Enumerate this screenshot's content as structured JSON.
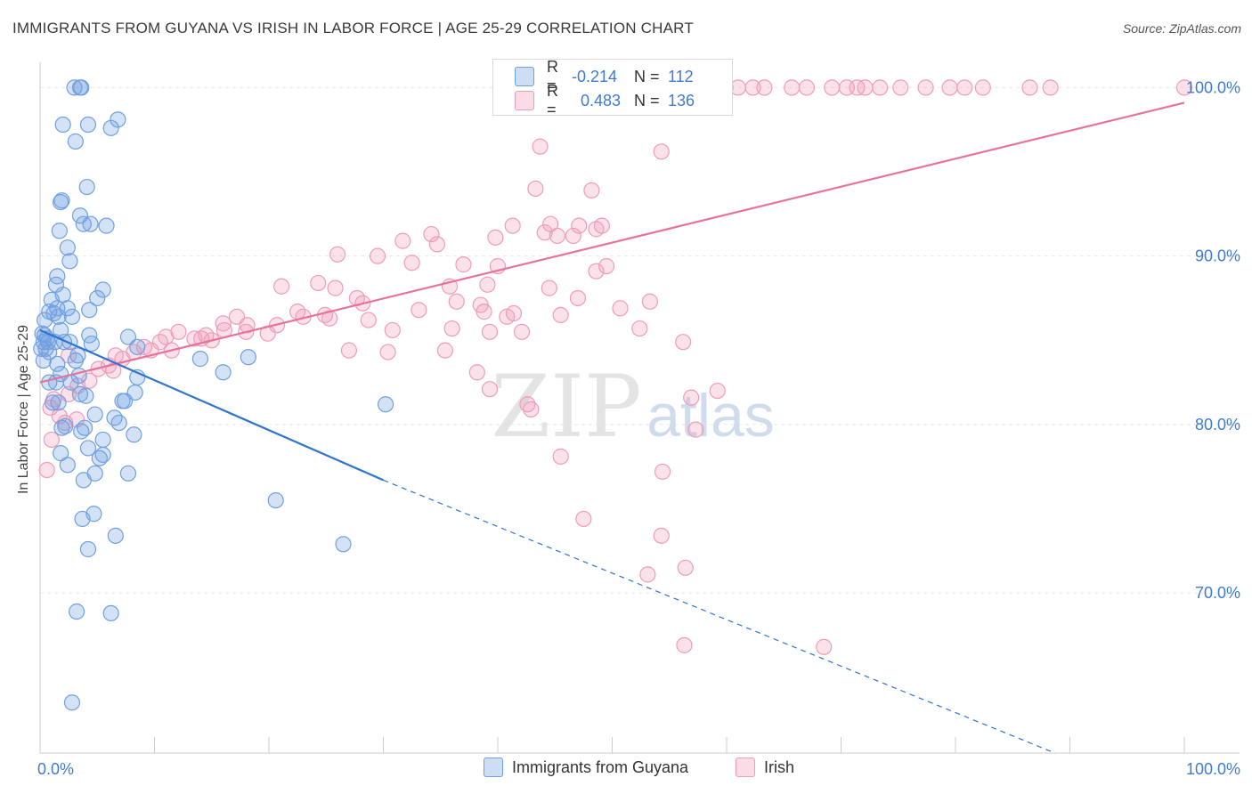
{
  "title": "IMMIGRANTS FROM GUYANA VS IRISH IN LABOR FORCE | AGE 25-29 CORRELATION CHART",
  "source": "Source: ZipAtlas.com",
  "watermark": {
    "zip": "ZIP",
    "atlas": "atlas"
  },
  "legend": {
    "r_label": "R =",
    "n_label": "N =",
    "series": [
      {
        "name": "Immigrants from Guyana",
        "r": "-0.214",
        "n": "112",
        "color": "#6fa0e0"
      },
      {
        "name": "Irish",
        "r": "0.483",
        "n": "136",
        "color": "#f09cb8"
      }
    ]
  },
  "chart_data": {
    "type": "scatter",
    "title": "IMMIGRANTS FROM GUYANA VS IRISH IN LABOR FORCE | AGE 25-29 CORRELATION CHART",
    "xlabel": "",
    "ylabel": "In Labor Force | Age 25-29",
    "xlim": [
      0,
      100
    ],
    "ylim": [
      60.5,
      101.5
    ],
    "x_tick_labels": [
      "0.0%",
      "100.0%"
    ],
    "y_ticks": [
      70,
      80,
      90,
      100
    ],
    "y_tick_labels": [
      "70.0%",
      "80.0%",
      "90.0%",
      "100.0%"
    ],
    "grid": true,
    "colors": {
      "blue": "#6fa0e0",
      "pink": "#f09cb8",
      "blue_line": "#2f74d0",
      "pink_line": "#e8739a",
      "value_text": "#3d7bd4"
    },
    "series": [
      {
        "name": "Immigrants from Guyana",
        "points": [
          [
            3,
            100
          ],
          [
            3.5,
            100
          ],
          [
            3.6,
            100
          ],
          [
            2,
            97.8
          ],
          [
            4.2,
            97.8
          ],
          [
            6.2,
            97.6
          ],
          [
            6.8,
            98.1
          ],
          [
            3.1,
            96.8
          ],
          [
            1.9,
            93.3
          ],
          [
            1.8,
            93.2
          ],
          [
            4.1,
            94.1
          ],
          [
            3.5,
            92.4
          ],
          [
            3.8,
            91.9
          ],
          [
            4.4,
            91.9
          ],
          [
            5.8,
            91.8
          ],
          [
            1.7,
            91.5
          ],
          [
            2.4,
            90.5
          ],
          [
            2.6,
            89.7
          ],
          [
            1.5,
            88.8
          ],
          [
            1.4,
            88.3
          ],
          [
            2,
            87.7
          ],
          [
            5.5,
            88
          ],
          [
            5,
            87.5
          ],
          [
            1,
            87.4
          ],
          [
            0.8,
            86.7
          ],
          [
            1.5,
            86.9
          ],
          [
            2.4,
            86.9
          ],
          [
            4.3,
            86.8
          ],
          [
            0.4,
            86.2
          ],
          [
            1.2,
            86.6
          ],
          [
            1.6,
            86.4
          ],
          [
            2.8,
            86.4
          ],
          [
            1.8,
            85.6
          ],
          [
            0.2,
            85.4
          ],
          [
            0.4,
            85.3
          ],
          [
            0.6,
            85.1
          ],
          [
            0.3,
            84.9
          ],
          [
            0.7,
            84.9
          ],
          [
            1.3,
            84.9
          ],
          [
            2.1,
            84.9
          ],
          [
            2.6,
            84.9
          ],
          [
            4.3,
            85.3
          ],
          [
            7.7,
            85.2
          ],
          [
            0.1,
            84.5
          ],
          [
            0.5,
            84.5
          ],
          [
            0.8,
            84.3
          ],
          [
            3.3,
            84.1
          ],
          [
            4.5,
            84.8
          ],
          [
            8.5,
            84.6
          ],
          [
            0.3,
            83.8
          ],
          [
            1.5,
            83.6
          ],
          [
            3.1,
            83.8
          ],
          [
            14,
            83.9
          ],
          [
            18.2,
            84
          ],
          [
            1.8,
            83
          ],
          [
            3.4,
            82.9
          ],
          [
            8.5,
            82.8
          ],
          [
            16,
            83.1
          ],
          [
            0.8,
            82.5
          ],
          [
            1.4,
            82.5
          ],
          [
            2.7,
            82.5
          ],
          [
            3.5,
            81.8
          ],
          [
            4,
            81.7
          ],
          [
            8.3,
            81.9
          ],
          [
            1.1,
            81.3
          ],
          [
            1.6,
            81.3
          ],
          [
            7.2,
            81.4
          ],
          [
            7.4,
            81.4
          ],
          [
            30.2,
            81.2
          ],
          [
            4.8,
            80.6
          ],
          [
            6.5,
            80.4
          ],
          [
            6.9,
            80.1
          ],
          [
            1.9,
            79.8
          ],
          [
            2.2,
            79.9
          ],
          [
            3.6,
            79.6
          ],
          [
            3.9,
            79.8
          ],
          [
            8.2,
            79.4
          ],
          [
            5.5,
            79.1
          ],
          [
            1.8,
            78.3
          ],
          [
            4.2,
            78.6
          ],
          [
            5.2,
            78
          ],
          [
            5.5,
            78.2
          ],
          [
            2.4,
            77.6
          ],
          [
            4.8,
            77.1
          ],
          [
            7.7,
            77.1
          ],
          [
            3.8,
            76.7
          ],
          [
            20.6,
            75.5
          ],
          [
            4.7,
            74.7
          ],
          [
            3.7,
            74.4
          ],
          [
            6.6,
            73.4
          ],
          [
            4.2,
            72.6
          ],
          [
            26.5,
            72.9
          ],
          [
            3.2,
            68.9
          ],
          [
            6.2,
            68.8
          ],
          [
            2.8,
            63.5
          ]
        ],
        "trend": {
          "x0": 0,
          "y0": 85.6,
          "x1": 30,
          "y1": 76.7,
          "dashed_to_x": 88.7,
          "dashed_to_y": 60.5
        }
      },
      {
        "name": "Irish",
        "points": [
          [
            47,
            100
          ],
          [
            48,
            100
          ],
          [
            49,
            100
          ],
          [
            49.5,
            100
          ],
          [
            50,
            100
          ],
          [
            50.5,
            100
          ],
          [
            51.2,
            100
          ],
          [
            53,
            100
          ],
          [
            55,
            100
          ],
          [
            56.3,
            100
          ],
          [
            58,
            100
          ],
          [
            58.5,
            100
          ],
          [
            59.1,
            100
          ],
          [
            59.9,
            100
          ],
          [
            61,
            100
          ],
          [
            62.3,
            100
          ],
          [
            63.3,
            100
          ],
          [
            65.7,
            100
          ],
          [
            67,
            100
          ],
          [
            69.2,
            100
          ],
          [
            70.5,
            100
          ],
          [
            71.4,
            100
          ],
          [
            72.1,
            100
          ],
          [
            73.4,
            100
          ],
          [
            75.2,
            100
          ],
          [
            77.4,
            100
          ],
          [
            79.5,
            100
          ],
          [
            80.8,
            100
          ],
          [
            82.4,
            100
          ],
          [
            86.5,
            100
          ],
          [
            88.3,
            100
          ],
          [
            100,
            100
          ],
          [
            43.7,
            96.5
          ],
          [
            54.3,
            96.2
          ],
          [
            43.3,
            94
          ],
          [
            48.2,
            93.9
          ],
          [
            41.3,
            91.8
          ],
          [
            47.1,
            91.8
          ],
          [
            49.1,
            91.8
          ],
          [
            44.6,
            91.9
          ],
          [
            44.1,
            91.4
          ],
          [
            34.2,
            91.3
          ],
          [
            39.8,
            91.1
          ],
          [
            46.6,
            91.2
          ],
          [
            48.6,
            91.6
          ],
          [
            45.2,
            91.2
          ],
          [
            31.7,
            90.9
          ],
          [
            34.7,
            90.7
          ],
          [
            26,
            90.1
          ],
          [
            29.5,
            90
          ],
          [
            32.5,
            89.6
          ],
          [
            37,
            89.5
          ],
          [
            40,
            89.4
          ],
          [
            49.5,
            89.4
          ],
          [
            48.6,
            89.1
          ],
          [
            35.8,
            88.2
          ],
          [
            39.1,
            88.3
          ],
          [
            21.1,
            88.2
          ],
          [
            24.3,
            88.4
          ],
          [
            25.8,
            88.1
          ],
          [
            27.7,
            87.5
          ],
          [
            28.2,
            87.2
          ],
          [
            53.3,
            87.3
          ],
          [
            38.8,
            86.7
          ],
          [
            40.8,
            86.4
          ],
          [
            45.5,
            86.5
          ],
          [
            23,
            86.4
          ],
          [
            25.3,
            86.3
          ],
          [
            30.8,
            85.6
          ],
          [
            36,
            85.7
          ],
          [
            39.3,
            85.5
          ],
          [
            42.1,
            85.5
          ],
          [
            56.2,
            84.9
          ],
          [
            17.2,
            86.4
          ],
          [
            18.1,
            85.9
          ],
          [
            16,
            86
          ],
          [
            14.5,
            85.3
          ],
          [
            12.1,
            85.5
          ],
          [
            13.5,
            85.1
          ],
          [
            11,
            85.2
          ],
          [
            10.5,
            84.9
          ],
          [
            9.1,
            84.6
          ],
          [
            8.2,
            84.3
          ],
          [
            7.2,
            83.9
          ],
          [
            6.6,
            84.1
          ],
          [
            6,
            83.5
          ],
          [
            5.1,
            83.3
          ],
          [
            4.3,
            82.6
          ],
          [
            3.3,
            82.3
          ],
          [
            2.5,
            81.8
          ],
          [
            1.2,
            81.5
          ],
          [
            0.9,
            81
          ],
          [
            1.7,
            80.5
          ],
          [
            2.2,
            80.1
          ],
          [
            3.2,
            80.3
          ],
          [
            27,
            84.4
          ],
          [
            30.4,
            84.3
          ],
          [
            35.4,
            84.4
          ],
          [
            38.2,
            83.1
          ],
          [
            39.3,
            82.1
          ],
          [
            42.6,
            81.2
          ],
          [
            42.9,
            80.9
          ],
          [
            45.5,
            78.1
          ],
          [
            54.4,
            77.2
          ],
          [
            47.5,
            74.4
          ],
          [
            54.3,
            73.4
          ],
          [
            53.1,
            71.1
          ],
          [
            56.4,
            71.5
          ],
          [
            57.3,
            79.7
          ],
          [
            56.9,
            81.6
          ],
          [
            59.2,
            82
          ],
          [
            56.3,
            66.9
          ],
          [
            68.5,
            66.8
          ],
          [
            0.6,
            77.3
          ],
          [
            1,
            79.1
          ],
          [
            2.5,
            84.1
          ],
          [
            6.4,
            83.2
          ],
          [
            9.7,
            84.4
          ],
          [
            11.5,
            84.4
          ],
          [
            14.1,
            85.1
          ],
          [
            15,
            85
          ],
          [
            16.1,
            85.6
          ],
          [
            18,
            85.5
          ],
          [
            19.9,
            85.4
          ],
          [
            20.7,
            85.9
          ],
          [
            22.5,
            86.7
          ],
          [
            24.9,
            86.5
          ],
          [
            28.7,
            86.2
          ],
          [
            33.1,
            86.8
          ],
          [
            36.4,
            87.3
          ],
          [
            38.5,
            87.1
          ],
          [
            41.4,
            86.6
          ],
          [
            44.5,
            88.1
          ],
          [
            47,
            87.5
          ],
          [
            50.7,
            86.9
          ],
          [
            52.4,
            85.7
          ]
        ],
        "trend": {
          "x0": 0,
          "y0": 82.5,
          "x1": 100,
          "y1": 99.1
        }
      }
    ]
  }
}
